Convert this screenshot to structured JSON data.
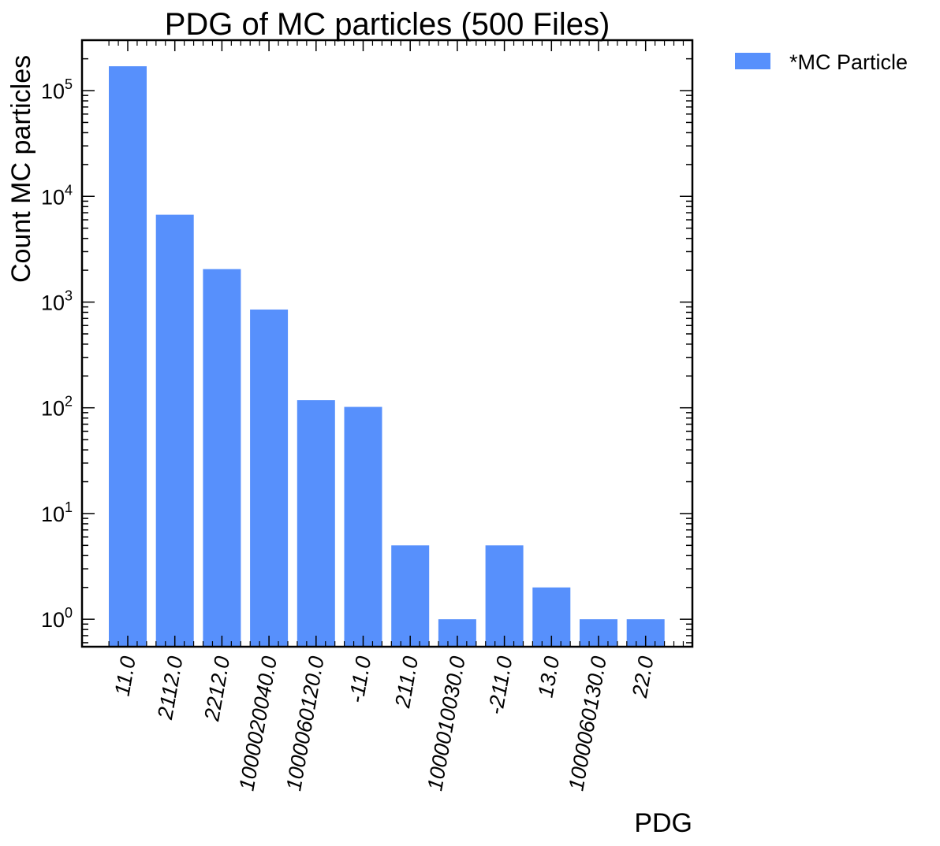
{
  "chart_data": {
    "type": "bar",
    "title": "PDG of MC particles (500 Files)",
    "xlabel": "PDG",
    "ylabel": "Count MC particles",
    "yscale": "log",
    "ylim": [
      0.55,
      300000
    ],
    "grid": false,
    "legend_position": "outside-top-right",
    "categories": [
      "11.0",
      "2112.0",
      "2212.0",
      "1000020040.0",
      "1000060120.0",
      "-11.0",
      "211.0",
      "1000010030.0",
      "-211.0",
      "13.0",
      "1000060130.0",
      "22.0"
    ],
    "series": [
      {
        "name": "*MC Particle",
        "color": "#5790fc",
        "values": [
          170000,
          6700,
          2050,
          850,
          118,
          102,
          5,
          1,
          5,
          2,
          1,
          1
        ]
      }
    ],
    "y_ticks": [
      {
        "value": 1,
        "base": "10",
        "exp": "0"
      },
      {
        "value": 10,
        "base": "10",
        "exp": "1"
      },
      {
        "value": 100,
        "base": "10",
        "exp": "2"
      },
      {
        "value": 1000,
        "base": "10",
        "exp": "3"
      },
      {
        "value": 10000,
        "base": "10",
        "exp": "4"
      },
      {
        "value": 100000,
        "base": "10",
        "exp": "5"
      }
    ]
  }
}
